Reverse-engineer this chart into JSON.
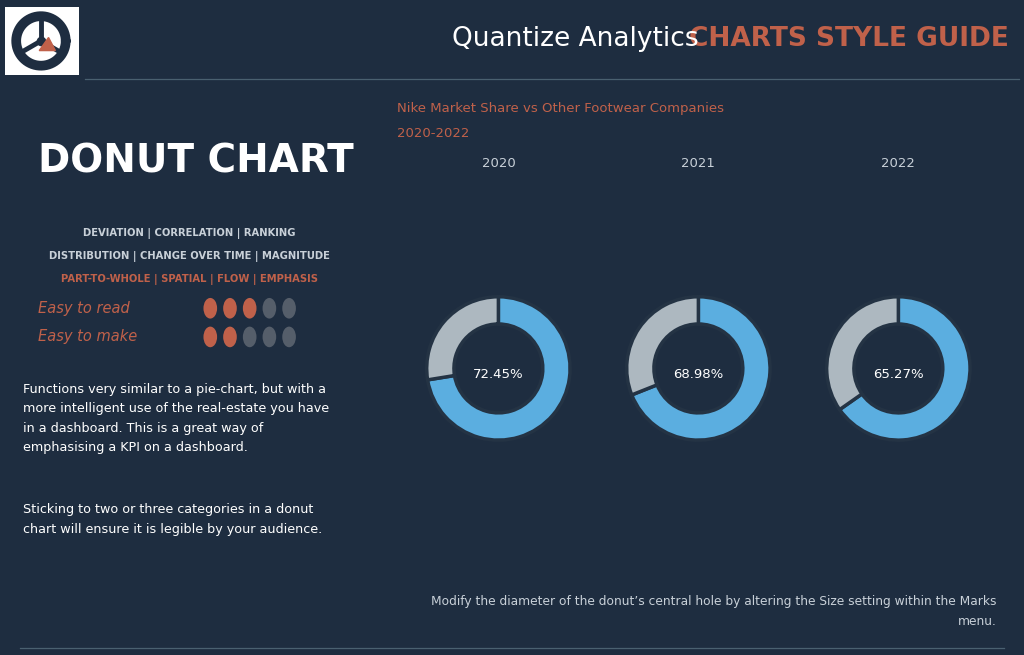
{
  "bg_color": "#1e2d40",
  "chart_bg_color": "#243344",
  "title_main": "Quantize Analytics ",
  "title_highlight": "CHARTS STYLE GUIDE",
  "title_color_main": "#ffffff",
  "title_color_highlight": "#c0614a",
  "chart_title_line1": "Nike Market Share vs Other Footwear Companies",
  "chart_title_line2": "2020-2022",
  "chart_title_color": "#c0614a",
  "donut_label": "DONUT CHART",
  "years": [
    "2020",
    "2021",
    "2022"
  ],
  "values": [
    72.45,
    68.98,
    65.27
  ],
  "nike_color": "#5baee0",
  "other_color": "#adb8c0",
  "center_text_color": "#ffffff",
  "year_label_color": "#c8d0d8",
  "categories_line1": "DEVIATION | CORRELATION | RANKING",
  "categories_line2": "DISTRIBUTION | CHANGE OVER TIME | MAGNITUDE",
  "categories_highlight": "PART-TO-WHOLE | SPATIAL | FLOW | EMPHASIS",
  "categories_color": "#c8d0d8",
  "categories_highlight_color": "#c0614a",
  "easy_read_label": "Easy to read",
  "easy_make_label": "Easy to make",
  "easy_color": "#c0614a",
  "body_text1": "Functions very similar to a pie-chart, but with a\nmore intelligent use of the real-estate you have\nin a dashboard. This is a great way of\nemphasising a KPI on a dashboard.",
  "body_text2": "Sticking to two or three categories in a donut\nchart will ensure it is legible by your audience.",
  "body_color": "#ffffff",
  "note_text": "Modify the diameter of the donut’s central hole by altering the Size setting within the Marks\nmenu.",
  "note_color": "#c8d0d8",
  "separator_color": "#4a6070",
  "dot_filled_color": "#c0614a",
  "dot_empty_color": "#555e6a",
  "easy_read_dots_filled": 3,
  "easy_read_dots_total": 5,
  "easy_make_dots_filled": 2,
  "easy_make_dots_total": 5,
  "logo_bg": "#ffffff",
  "logo_ring_color": "#1e2d40",
  "logo_triangle_color": "#c0614a"
}
